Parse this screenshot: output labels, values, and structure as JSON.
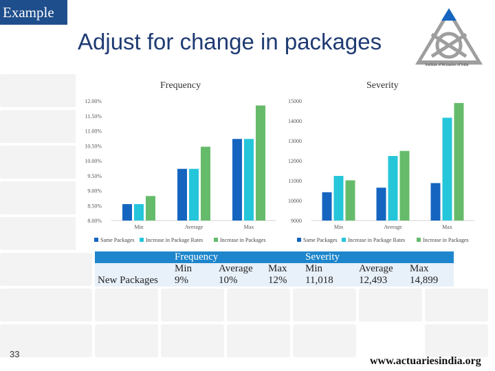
{
  "slide": {
    "tag": "Example",
    "title": "Adjust for change in packages",
    "logo_text": "Institute of Actuaries of India",
    "page_number": "33",
    "website": "www.actuariesindia.org"
  },
  "colors": {
    "series": [
      "#1565c0",
      "#26c6da",
      "#66bb6a"
    ],
    "tag_bg": "#1f4e8c",
    "table_header": "#1e86cc"
  },
  "chart_data": [
    {
      "type": "bar",
      "title": "Frequency",
      "categories": [
        "Min",
        "Average",
        "Max"
      ],
      "series": [
        {
          "name": "Same Packages",
          "values": [
            8.55,
            9.73,
            10.73
          ]
        },
        {
          "name": "Increase in Package Rates",
          "values": [
            8.55,
            9.73,
            10.73
          ]
        },
        {
          "name": "Increase in Packages",
          "values": [
            8.82,
            10.47,
            11.85
          ]
        }
      ],
      "ylim": [
        8.0,
        12.0
      ],
      "yticks": [
        "12.00%",
        "11.50%",
        "11.00%",
        "10.50%",
        "10.00%",
        "9.50%",
        "9.00%",
        "8.50%",
        "8.00%"
      ],
      "grid": false,
      "legend": "bottom"
    },
    {
      "type": "bar",
      "title": "Severity",
      "categories": [
        "Min",
        "Average",
        "Max"
      ],
      "series": [
        {
          "name": "Same Packages",
          "values": [
            10420,
            10650,
            10880
          ]
        },
        {
          "name": "Increase in Package Rates",
          "values": [
            11240,
            12240,
            14160
          ]
        },
        {
          "name": "Increase in Packages",
          "values": [
            11018,
            12493,
            14899
          ]
        }
      ],
      "ylim": [
        9000,
        15000
      ],
      "yticks": [
        "15000",
        "14000",
        "13000",
        "12000",
        "11000",
        "10000",
        "9000"
      ],
      "grid": false,
      "legend": "bottom"
    }
  ],
  "summary_table": {
    "frequency_header": "Frequency",
    "severity_header": "Severity",
    "col_min": "Min",
    "col_average": "Average",
    "col_max": "Max",
    "row_label": "New Packages",
    "frequency": {
      "min": "9%",
      "average": "10%",
      "max": "12%"
    },
    "severity": {
      "min": "11,018",
      "average": "12,493",
      "max": "14,899"
    }
  }
}
